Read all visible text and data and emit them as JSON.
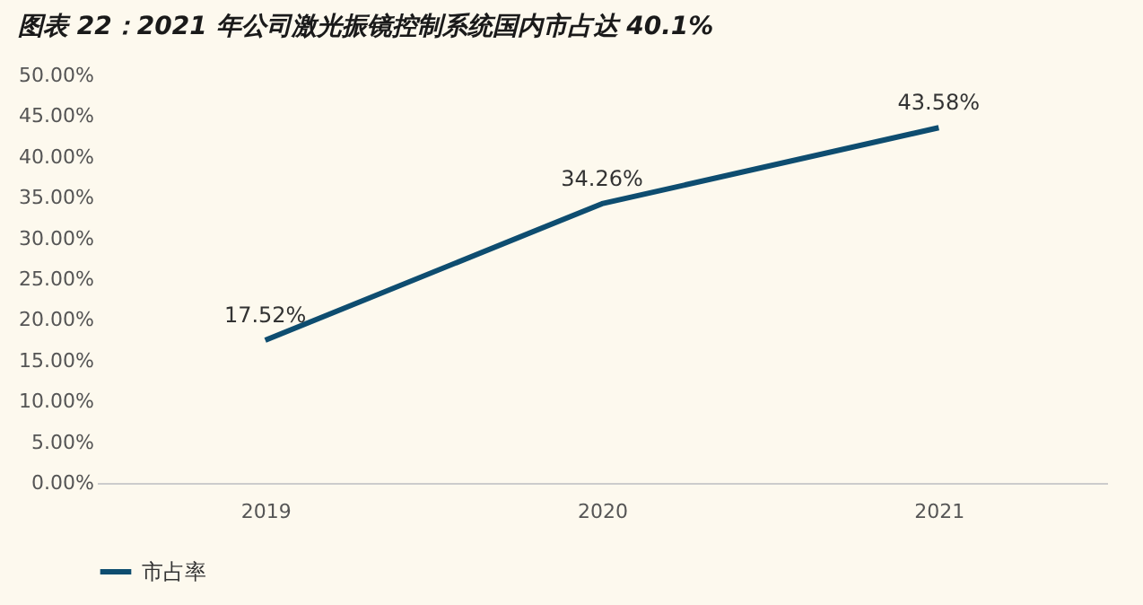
{
  "chart_data": {
    "type": "line",
    "title": "图表 22：2021 年公司激光振镜控制系统国内市占达 40.1%",
    "categories": [
      "2019",
      "2020",
      "2021"
    ],
    "series": [
      {
        "name": "市占率",
        "color": "#0e4d70",
        "values": [
          17.52,
          34.26,
          43.58
        ],
        "value_labels": [
          "17.52%",
          "34.26%",
          "43.58%"
        ]
      }
    ],
    "ylim": [
      0,
      50
    ],
    "yticks": [
      {
        "value": 0,
        "label": "0.00%"
      },
      {
        "value": 5,
        "label": "5.00%"
      },
      {
        "value": 10,
        "label": "10.00%"
      },
      {
        "value": 15,
        "label": "15.00%"
      },
      {
        "value": 20,
        "label": "20.00%"
      },
      {
        "value": 25,
        "label": "25.00%"
      },
      {
        "value": 30,
        "label": "30.00%"
      },
      {
        "value": 35,
        "label": "35.00%"
      },
      {
        "value": 40,
        "label": "40.00%"
      },
      {
        "value": 45,
        "label": "45.00%"
      },
      {
        "value": 50,
        "label": "50.00%"
      }
    ],
    "grid": false,
    "legend": "bottom",
    "marker": "none",
    "line_style": "solid"
  }
}
